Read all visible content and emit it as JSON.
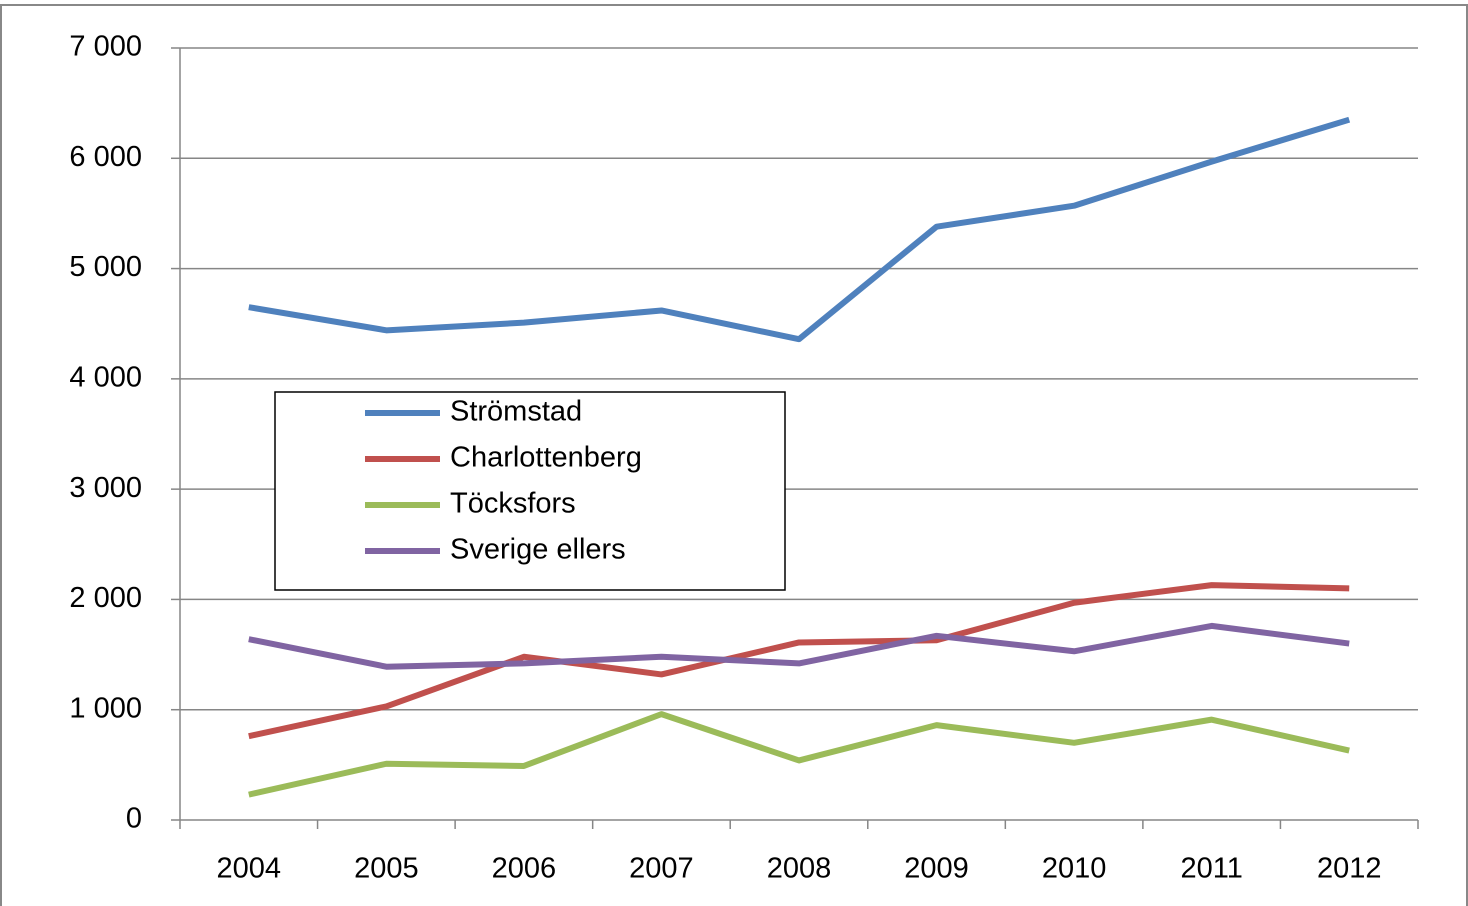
{
  "chart_data": {
    "type": "line",
    "categories": [
      "2004",
      "2005",
      "2006",
      "2007",
      "2008",
      "2009",
      "2010",
      "2011",
      "2012"
    ],
    "series": [
      {
        "name": "Strömstad",
        "color": "#4f81bd",
        "values": [
          4650,
          4440,
          4510,
          4620,
          4360,
          5380,
          5570,
          5970,
          6350
        ]
      },
      {
        "name": "Charlottenberg",
        "color": "#c0504d",
        "values": [
          760,
          1030,
          1480,
          1320,
          1610,
          1630,
          1970,
          2130,
          2100
        ]
      },
      {
        "name": "Töcksfors",
        "color": "#9bbb59",
        "values": [
          230,
          510,
          490,
          960,
          540,
          860,
          700,
          910,
          630
        ]
      },
      {
        "name": "Sverige ellers",
        "color": "#8064a2",
        "values": [
          1640,
          1390,
          1420,
          1480,
          1420,
          1670,
          1530,
          1760,
          1600
        ]
      }
    ],
    "ylim": [
      0,
      7000
    ],
    "yticks": [
      0,
      {
        "value": 1000,
        "label": "1 000"
      },
      {
        "value": 2000,
        "label": "2 000"
      },
      {
        "value": 3000,
        "label": "3 000"
      },
      {
        "value": 4000,
        "label": "4 000"
      },
      {
        "value": 5000,
        "label": "5 000"
      },
      {
        "value": 6000,
        "label": "6 000"
      },
      {
        "value": 7000,
        "label": "7 000"
      }
    ],
    "grid": true,
    "legend_position": "center-left"
  }
}
